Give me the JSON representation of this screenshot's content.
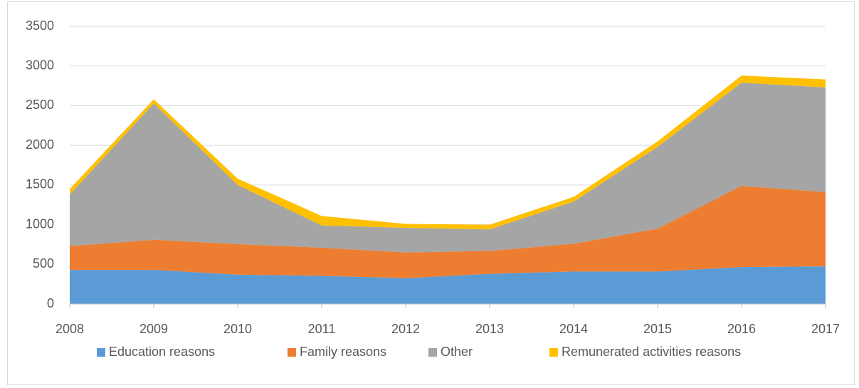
{
  "chart_data": {
    "type": "stacked_area",
    "categories": [
      "2008",
      "2009",
      "2010",
      "2011",
      "2012",
      "2013",
      "2014",
      "2015",
      "2016",
      "2017"
    ],
    "series": [
      {
        "name": "Education reasons",
        "color": "#5b9bd5",
        "values": [
          430,
          430,
          370,
          355,
          325,
          380,
          410,
          410,
          465,
          475
        ]
      },
      {
        "name": "Family reasons",
        "color": "#ed7d31",
        "values": [
          300,
          380,
          385,
          355,
          325,
          290,
          350,
          540,
          1025,
          935
        ]
      },
      {
        "name": "Other",
        "color": "#a5a5a5",
        "values": [
          650,
          1720,
          745,
          280,
          310,
          270,
          530,
          1030,
          1300,
          1320
        ]
      },
      {
        "name": "Remunerated activities reasons",
        "color": "#ffc000",
        "values": [
          70,
          50,
          80,
          120,
          50,
          60,
          60,
          70,
          90,
          100
        ]
      }
    ],
    "ylim": [
      0,
      3500
    ],
    "yticks": [
      0,
      500,
      1000,
      1500,
      2000,
      2500,
      3000,
      3500
    ],
    "grid": true,
    "legend": "bottom"
  }
}
